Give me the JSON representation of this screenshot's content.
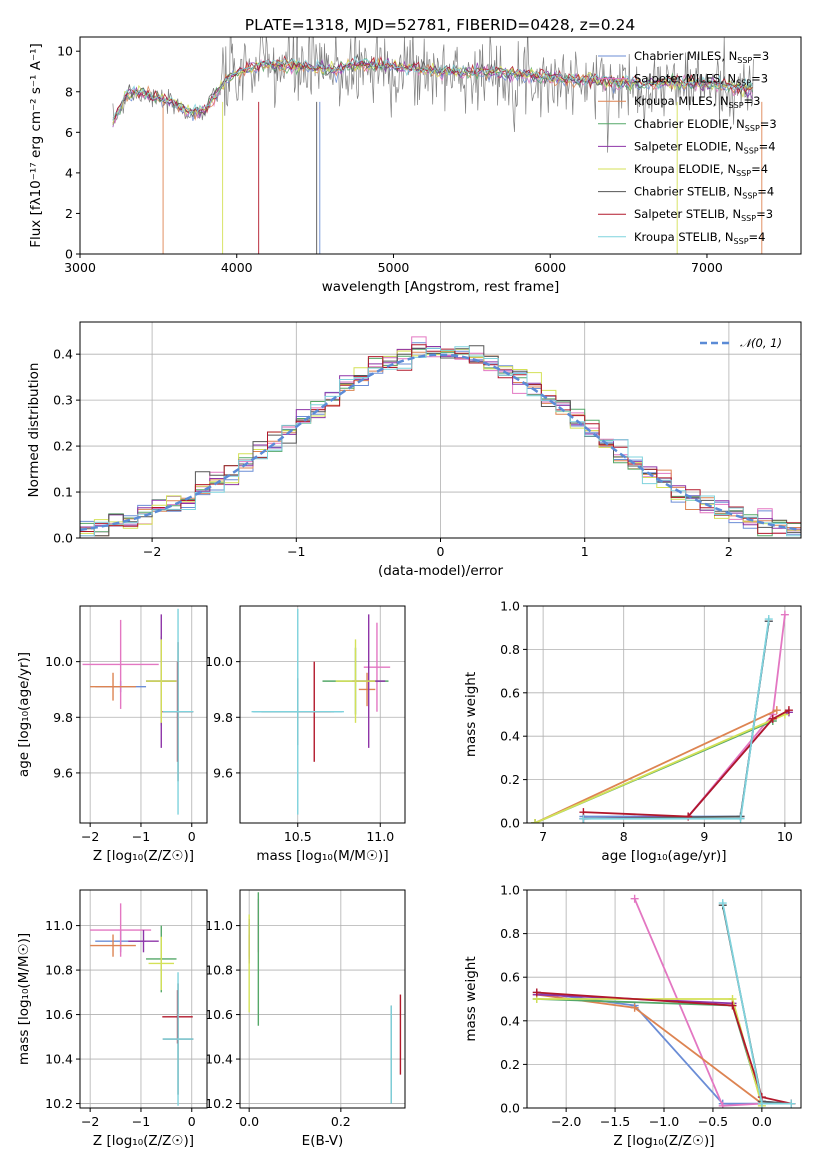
{
  "title": "PLATE=1318, MJD=52781, FIBERID=0428, z=0.24",
  "models": [
    {
      "name": "Chabrier MILES",
      "nssp": "3",
      "color": "#6b8dd6"
    },
    {
      "name": "Salpeter MILES",
      "nssp": "3",
      "color": "#e377c2"
    },
    {
      "name": "Kroupa MILES",
      "nssp": "3",
      "color": "#dd8452"
    },
    {
      "name": "Chabrier ELODIE",
      "nssp": "3",
      "color": "#55a868"
    },
    {
      "name": "Salpeter ELODIE",
      "nssp": "4",
      "color": "#8e35a8"
    },
    {
      "name": "Kroupa ELODIE",
      "nssp": "4",
      "color": "#d4e157"
    },
    {
      "name": "Chabrier STELIB",
      "nssp": "4",
      "color": "#555555"
    },
    {
      "name": "Salpeter STELIB",
      "nssp": "3",
      "color": "#b2182b"
    },
    {
      "name": "Kroupa STELIB",
      "nssp": "4",
      "color": "#7fd3dd"
    }
  ],
  "chart_data": [
    {
      "id": "spectrum",
      "type": "line",
      "xlabel": "wavelength [Angstrom, rest frame]",
      "ylabel": "Flux [fλ10⁻¹⁷ erg cm⁻² s⁻¹ A⁻¹]",
      "xlim": [
        3000,
        7600
      ],
      "ylim": [
        0,
        10.7
      ],
      "xticks": [
        "3000",
        "4000",
        "5000",
        "6000",
        "7000"
      ],
      "yticks": [
        "0",
        "2",
        "4",
        "6",
        "8",
        "10"
      ],
      "data_color": "#808080",
      "model_x": [
        3200,
        3300,
        3400,
        3500,
        3600,
        3700,
        3800,
        3900,
        4000,
        4200,
        4400,
        4600,
        4800,
        5000,
        5200,
        5400,
        5600,
        5800,
        6000,
        6200,
        6400,
        6600,
        6800,
        7000,
        7200,
        7300
      ],
      "model_y": [
        6.3,
        7.8,
        7.9,
        7.6,
        7.3,
        6.9,
        7.0,
        8.2,
        8.9,
        9.3,
        9.2,
        9.0,
        9.3,
        9.2,
        9.0,
        8.9,
        8.9,
        8.8,
        8.6,
        8.5,
        8.4,
        8.3,
        8.4,
        8.3,
        8.1,
        8.0
      ],
      "grid": false,
      "legend": "right"
    },
    {
      "id": "residual_hist",
      "type": "step",
      "xlabel": "(data-model)/error",
      "ylabel": "Normed distribution",
      "xlim": [
        -2.5,
        2.5
      ],
      "ylim": [
        0,
        0.47
      ],
      "xticks": [
        "−2",
        "−1",
        "0",
        "1",
        "2"
      ],
      "yticks": [
        "0.0",
        "0.1",
        "0.2",
        "0.3",
        "0.4"
      ],
      "legend_label": "𝒩(0, 1)",
      "legend": "top-right",
      "grid": true
    },
    {
      "id": "age_vs_Z",
      "type": "errorbar",
      "xlabel": "Z [log₁₀(Z/Z☉)]",
      "ylabel": "age  [log₁₀(age/yr)]",
      "xlim": [
        -2.2,
        0.3
      ],
      "ylim": [
        9.42,
        10.2
      ],
      "xticks": [
        "−2",
        "−1",
        "0"
      ],
      "yticks": [
        "9.6",
        "9.8",
        "10.0"
      ],
      "grid": true,
      "points": [
        {
          "m": 0,
          "x": -1.4,
          "y": 9.91,
          "xerr": 0.5,
          "yerr": 0.02
        },
        {
          "m": 1,
          "x": -1.4,
          "y": 9.99,
          "xerr": 0.75,
          "yerr": 0.16
        },
        {
          "m": 2,
          "x": -1.55,
          "y": 9.91,
          "xerr": 0.45,
          "yerr": 0.05
        },
        {
          "m": 3,
          "x": -0.6,
          "y": 9.93,
          "xerr": 0.3,
          "yerr": 0.16
        },
        {
          "m": 4,
          "x": -0.6,
          "y": 9.93,
          "xerr": 0.3,
          "yerr": 0.24
        },
        {
          "m": 5,
          "x": -0.6,
          "y": 9.93,
          "xerr": 0.3,
          "yerr": 0.15
        },
        {
          "m": 6,
          "x": -0.27,
          "y": 9.82,
          "xerr": 0.3,
          "yerr": 0.25
        },
        {
          "m": 7,
          "x": -0.28,
          "y": 9.82,
          "xerr": 0.3,
          "yerr": 0.18
        },
        {
          "m": 8,
          "x": -0.27,
          "y": 9.82,
          "xerr": 0.3,
          "yerr": 0.37
        }
      ]
    },
    {
      "id": "age_vs_mass",
      "type": "errorbar",
      "xlabel": "mass [log₁₀(M/M☉)]",
      "ylabel": "",
      "xlim": [
        10.15,
        11.15
      ],
      "ylim": [
        9.42,
        10.2
      ],
      "xticks": [
        "10.5",
        "11.0"
      ],
      "yticks": [
        "9.6",
        "9.8",
        "10.0"
      ],
      "grid": true,
      "points": [
        {
          "m": 0,
          "x": 10.5,
          "y": 9.82,
          "xerr": 0.27,
          "yerr": 0.12
        },
        {
          "m": 1,
          "x": 10.98,
          "y": 9.98,
          "xerr": 0.08,
          "yerr": 0.16
        },
        {
          "m": 2,
          "x": 10.92,
          "y": 9.9,
          "xerr": 0.05,
          "yerr": 0.06
        },
        {
          "m": 3,
          "x": 10.85,
          "y": 9.93,
          "xerr": 0.2,
          "yerr": 0.12
        },
        {
          "m": 4,
          "x": 10.93,
          "y": 9.93,
          "xerr": 0.1,
          "yerr": 0.24
        },
        {
          "m": 5,
          "x": 10.85,
          "y": 9.93,
          "xerr": 0.12,
          "yerr": 0.15
        },
        {
          "m": 6,
          "x": 10.5,
          "y": 9.82,
          "xerr": 0.22,
          "yerr": 0.12
        },
        {
          "m": 7,
          "x": 10.6,
          "y": 9.82,
          "xerr": 0.1,
          "yerr": 0.18
        },
        {
          "m": 8,
          "x": 10.5,
          "y": 9.82,
          "xerr": 0.28,
          "yerr": 0.37
        }
      ]
    },
    {
      "id": "weight_vs_age",
      "type": "line",
      "xlabel": "age  [log₁₀(age/yr)]",
      "ylabel": "mass weight",
      "xlim": [
        6.8,
        10.2
      ],
      "ylim": [
        0,
        1
      ],
      "xticks": [
        "7",
        "8",
        "9",
        "10"
      ],
      "yticks": [
        "0.0",
        "0.2",
        "0.4",
        "0.6",
        "0.8",
        "1.0"
      ],
      "grid": true,
      "series": [
        {
          "m": 0,
          "x": [
            7.5,
            9.45,
            9.8
          ],
          "y": [
            0.03,
            0.03,
            0.93
          ]
        },
        {
          "m": 1,
          "x": [
            8.8,
            9.85,
            10.0
          ],
          "y": [
            0.03,
            0.5,
            0.96
          ]
        },
        {
          "m": 2,
          "x": [
            6.9,
            9.9
          ],
          "y": [
            0.0,
            0.52
          ]
        },
        {
          "m": 3,
          "x": [
            6.9,
            9.85
          ],
          "y": [
            0.0,
            0.47
          ]
        },
        {
          "m": 4,
          "x": [
            7.5,
            8.8,
            9.85,
            10.05
          ],
          "y": [
            0.02,
            0.03,
            0.48,
            0.51
          ]
        },
        {
          "m": 5,
          "x": [
            6.9,
            10.0
          ],
          "y": [
            0.0,
            0.5
          ]
        },
        {
          "m": 6,
          "x": [
            7.5,
            9.45,
            9.8
          ],
          "y": [
            0.02,
            0.03,
            0.93
          ]
        },
        {
          "m": 7,
          "x": [
            7.5,
            8.8,
            9.85,
            10.05
          ],
          "y": [
            0.05,
            0.03,
            0.48,
            0.52
          ]
        },
        {
          "m": 8,
          "x": [
            7.5,
            9.45,
            9.8
          ],
          "y": [
            0.02,
            0.02,
            0.94
          ]
        }
      ]
    },
    {
      "id": "mass_vs_Z",
      "type": "errorbar",
      "xlabel": "Z [log₁₀(Z/Z☉)]",
      "ylabel": "mass [log₁₀(M/M☉)]",
      "xlim": [
        -2.2,
        0.3
      ],
      "ylim": [
        10.18,
        11.16
      ],
      "xticks": [
        "−2",
        "−1",
        "0"
      ],
      "yticks": [
        "10.2",
        "10.4",
        "10.6",
        "10.8",
        "11.0"
      ],
      "grid": true,
      "points": [
        {
          "m": 0,
          "x": -1.4,
          "y": 10.93,
          "xerr": 0.5,
          "yerr": 0.05
        },
        {
          "m": 1,
          "x": -1.4,
          "y": 10.98,
          "xerr": 0.6,
          "yerr": 0.12
        },
        {
          "m": 2,
          "x": -1.55,
          "y": 10.91,
          "xerr": 0.45,
          "yerr": 0.05
        },
        {
          "m": 3,
          "x": -0.6,
          "y": 10.85,
          "xerr": 0.3,
          "yerr": 0.15
        },
        {
          "m": 4,
          "x": -0.95,
          "y": 10.93,
          "xerr": 0.3,
          "yerr": 0.05
        },
        {
          "m": 5,
          "x": -0.6,
          "y": 10.83,
          "xerr": 0.25,
          "yerr": 0.12
        },
        {
          "m": 6,
          "x": -0.27,
          "y": 10.49,
          "xerr": 0.3,
          "yerr": 0.25
        },
        {
          "m": 7,
          "x": -0.28,
          "y": 10.59,
          "xerr": 0.3,
          "yerr": 0.12
        },
        {
          "m": 8,
          "x": -0.27,
          "y": 10.49,
          "xerr": 0.3,
          "yerr": 0.3
        }
      ]
    },
    {
      "id": "mass_vs_ebv",
      "type": "errorbar",
      "xlabel": "E(B-V)",
      "ylabel": "",
      "xlim": [
        -0.02,
        0.34
      ],
      "ylim": [
        10.18,
        11.16
      ],
      "xticks": [
        "0.0",
        "0.2"
      ],
      "yticks": [
        "10.2",
        "10.4",
        "10.6",
        "10.8",
        "11.0"
      ],
      "grid": true,
      "points": [
        {
          "m": 0,
          "x": 0.0,
          "y": 10.93,
          "xerr": 0.0,
          "yerr": 0.08
        },
        {
          "m": 1,
          "x": 0.02,
          "y": 11.0,
          "xerr": 0.0,
          "yerr": 0.12
        },
        {
          "m": 2,
          "x": 0.0,
          "y": 10.91,
          "xerr": 0.0,
          "yerr": 0.05
        },
        {
          "m": 3,
          "x": 0.02,
          "y": 10.85,
          "xerr": 0.0,
          "yerr": 0.3
        },
        {
          "m": 4,
          "x": 0.0,
          "y": 10.93,
          "xerr": 0.0,
          "yerr": 0.1
        },
        {
          "m": 5,
          "x": 0.0,
          "y": 10.83,
          "xerr": 0.0,
          "yerr": 0.22
        },
        {
          "m": 6,
          "x": 0.31,
          "y": 10.42,
          "xerr": 0.0,
          "yerr": 0.22
        },
        {
          "m": 7,
          "x": 0.33,
          "y": 10.51,
          "xerr": 0.0,
          "yerr": 0.18
        },
        {
          "m": 8,
          "x": 0.31,
          "y": 10.42,
          "xerr": 0.0,
          "yerr": 0.22
        }
      ]
    },
    {
      "id": "weight_vs_Z",
      "type": "line",
      "xlabel": "Z [log₁₀(Z/Z☉)]",
      "ylabel": "mass weight",
      "xlim": [
        -2.4,
        0.4
      ],
      "ylim": [
        0,
        1
      ],
      "xticks": [
        "−2.0",
        "−1.5",
        "−1.0",
        "−0.5",
        "0.0"
      ],
      "yticks": [
        "0.0",
        "0.2",
        "0.4",
        "0.6",
        "0.8",
        "1.0"
      ],
      "grid": true,
      "series": [
        {
          "m": 0,
          "x": [
            -2.3,
            -1.3,
            -0.4,
            0.0
          ],
          "y": [
            0.53,
            0.47,
            0.02,
            0.02
          ]
        },
        {
          "m": 1,
          "x": [
            -1.3,
            -0.4,
            0.0
          ],
          "y": [
            0.96,
            0.01,
            0.02
          ]
        },
        {
          "m": 2,
          "x": [
            -2.3,
            -1.3,
            0.0
          ],
          "y": [
            0.52,
            0.46,
            0.02
          ]
        },
        {
          "m": 3,
          "x": [
            -2.3,
            -0.3,
            0.0
          ],
          "y": [
            0.5,
            0.47,
            0.02
          ]
        },
        {
          "m": 4,
          "x": [
            -2.3,
            -0.3,
            0.0,
            0.3
          ],
          "y": [
            0.52,
            0.48,
            0.03,
            0.02
          ]
        },
        {
          "m": 5,
          "x": [
            -2.3,
            -0.3,
            0.0
          ],
          "y": [
            0.5,
            0.5,
            0.01
          ]
        },
        {
          "m": 6,
          "x": [
            -0.4,
            0.0,
            0.3
          ],
          "y": [
            0.93,
            0.03,
            0.02
          ]
        },
        {
          "m": 7,
          "x": [
            -2.3,
            -0.3,
            0.0,
            0.3
          ],
          "y": [
            0.53,
            0.47,
            0.05,
            0.02
          ]
        },
        {
          "m": 8,
          "x": [
            -0.4,
            0.0,
            0.3
          ],
          "y": [
            0.94,
            0.02,
            0.02
          ]
        }
      ]
    }
  ]
}
